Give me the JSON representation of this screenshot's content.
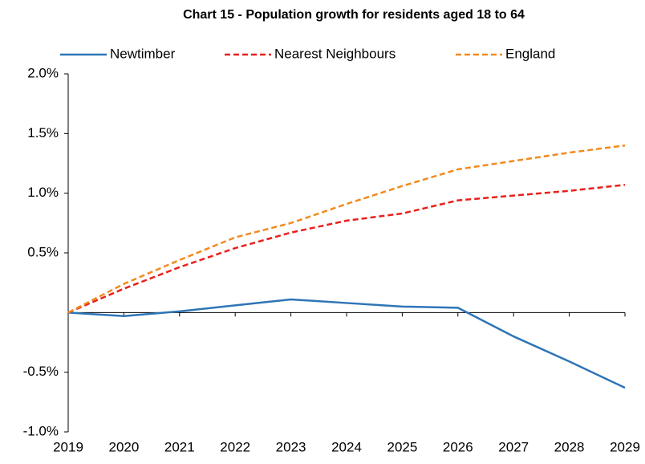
{
  "chart_data": {
    "type": "line",
    "title": "Chart 15 - Population growth for residents aged 18 to 64",
    "categories": [
      "2019",
      "2020",
      "2021",
      "2022",
      "2023",
      "2024",
      "2025",
      "2026",
      "2027",
      "2028",
      "2029"
    ],
    "series": [
      {
        "name": "Newtimber",
        "color": "#2e75b6",
        "dashed": false,
        "values": [
          0,
          -0.03,
          0.01,
          0.06,
          0.11,
          0.08,
          0.05,
          0.04,
          -0.2,
          -0.41,
          -0.63
        ]
      },
      {
        "name": "Nearest Neighbours",
        "color": "#e8201c",
        "dashed": true,
        "values": [
          0,
          0.2,
          0.38,
          0.54,
          0.67,
          0.77,
          0.83,
          0.94,
          0.98,
          1.02,
          1.07
        ]
      },
      {
        "name": "England",
        "color": "#f28a1e",
        "dashed": true,
        "values": [
          0,
          0.24,
          0.44,
          0.63,
          0.75,
          0.91,
          1.06,
          1.2,
          1.27,
          1.34,
          1.4
        ]
      }
    ],
    "ylim": [
      -1,
      2
    ],
    "yticks": [
      {
        "value": -1,
        "label": "-1.0%"
      },
      {
        "value": -0.5,
        "label": "-0.5%"
      },
      {
        "value": 0.5,
        "label": "0.5%"
      },
      {
        "value": 1,
        "label": "1.0%"
      },
      {
        "value": 1.5,
        "label": "1.5%"
      },
      {
        "value": 2,
        "label": "2.0%"
      }
    ],
    "grid": false,
    "legend": "top"
  }
}
